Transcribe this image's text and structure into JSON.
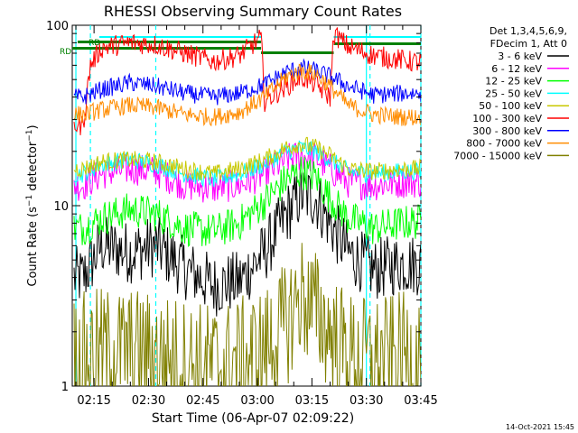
{
  "chart_data": {
    "type": "line",
    "title": "RHESSI Observing Summary Count Rates",
    "xlabel": "Start Time (06-Apr-07 02:09:22)",
    "ylabel": "Count Rate (s⁻¹ detector⁻¹)",
    "ylabel_parts": {
      "main": "Count Rate (s",
      "sup1": "−1",
      "mid": " detector",
      "sup2": "−1",
      "end": ")"
    },
    "yscale": "log",
    "ylim": [
      1,
      100
    ],
    "xlim_minutes_after_0209": [
      0,
      96
    ],
    "ytick_labels": [
      "1",
      "10",
      "100"
    ],
    "xtick_labels": [
      "02:15",
      "02:30",
      "02:45",
      "03:00",
      "03:15",
      "03:30",
      "03:45"
    ],
    "legend_header": [
      "Det 1,3,4,5,6,9,",
      "FDecim 1, Att 0"
    ],
    "flag_labels": [
      "RD",
      "RD"
    ],
    "footer_date": "14-Oct-2021 15:45",
    "series": [
      {
        "name": "3 - 6 keV",
        "color": "#000000",
        "x": [
          "02:12",
          "02:17",
          "02:25",
          "02:32",
          "02:40",
          "02:48",
          "02:55",
          "03:02",
          "03:08",
          "03:12",
          "03:16",
          "03:20",
          "03:25",
          "03:32",
          "03:40",
          "03:45"
        ],
        "y": [
          4.0,
          6.0,
          5.5,
          6.0,
          4.5,
          3.6,
          3.8,
          5.5,
          9.0,
          11.5,
          11.0,
          8.0,
          5.5,
          4.4,
          4.8,
          4.7
        ]
      },
      {
        "name": "6 - 12 keV",
        "color": "#ff00ff",
        "x": [
          "02:12",
          "02:17",
          "02:25",
          "02:32",
          "02:40",
          "02:48",
          "02:55",
          "03:02",
          "03:08",
          "03:12",
          "03:16",
          "03:20",
          "03:25",
          "03:32",
          "03:40",
          "03:45"
        ],
        "y": [
          13,
          15,
          16,
          15.5,
          13,
          12.5,
          13,
          15,
          18,
          19,
          18.5,
          16,
          13.5,
          13,
          13.5,
          13.5
        ]
      },
      {
        "name": "12 - 25 keV",
        "color": "#00ff00",
        "x": [
          "02:12",
          "02:17",
          "02:25",
          "02:32",
          "02:40",
          "02:48",
          "02:55",
          "03:02",
          "03:08",
          "03:12",
          "03:16",
          "03:20",
          "03:25",
          "03:32",
          "03:40",
          "03:45"
        ],
        "y": [
          7.5,
          8.5,
          9.5,
          9.0,
          7.5,
          7.2,
          8.0,
          10.5,
          14,
          15.5,
          14.5,
          11,
          8.5,
          7.5,
          8.0,
          8.2
        ]
      },
      {
        "name": "25 - 50 keV",
        "color": "#00ffff",
        "x": [
          "02:12",
          "02:17",
          "02:25",
          "02:32",
          "02:40",
          "02:48",
          "02:55",
          "03:02",
          "03:08",
          "03:12",
          "03:16",
          "03:20",
          "03:25",
          "03:32",
          "03:40",
          "03:45"
        ],
        "y": [
          15,
          17,
          18,
          17,
          15,
          14,
          15,
          17,
          20,
          21,
          20,
          18,
          15.5,
          15,
          15.5,
          15.5
        ]
      },
      {
        "name": "50 - 100 keV",
        "color": "#c8c800",
        "x": [
          "02:12",
          "02:17",
          "02:25",
          "02:32",
          "02:40",
          "02:48",
          "02:55",
          "03:02",
          "03:08",
          "03:12",
          "03:16",
          "03:20",
          "03:25",
          "03:32",
          "03:40",
          "03:45"
        ],
        "y": [
          16,
          17.5,
          18,
          17.5,
          16,
          15,
          16,
          18,
          21,
          22,
          21,
          19,
          16,
          15.5,
          16,
          16
        ]
      },
      {
        "name": "100 - 300 keV",
        "color": "#ff0000",
        "x": [
          "02:12",
          "02:14",
          "02:17",
          "02:25",
          "02:32",
          "02:40",
          "02:48",
          "02:55",
          "03:01",
          "03:02",
          "03:08",
          "03:12",
          "03:16",
          "03:20",
          "03:21",
          "03:25",
          "03:32",
          "03:40",
          "03:45"
        ],
        "y": [
          28,
          60,
          75,
          80,
          78,
          70,
          63,
          68,
          85,
          38,
          46,
          52,
          47,
          40,
          90,
          76,
          68,
          64,
          62
        ]
      },
      {
        "name": "300 - 800 keV",
        "color": "#0000ff",
        "x": [
          "02:12",
          "02:17",
          "02:25",
          "02:32",
          "02:40",
          "02:48",
          "02:55",
          "03:02",
          "03:08",
          "03:12",
          "03:16",
          "03:20",
          "03:25",
          "03:32",
          "03:40",
          "03:45"
        ],
        "y": [
          40,
          44,
          48,
          46,
          42,
          40,
          42,
          47,
          55,
          58,
          56,
          52,
          46,
          41,
          42,
          42
        ]
      },
      {
        "name": "800 - 7000 keV",
        "color": "#ff8c00",
        "x": [
          "02:12",
          "02:17",
          "02:25",
          "02:32",
          "02:40",
          "02:48",
          "02:55",
          "03:02",
          "03:08",
          "03:12",
          "03:16",
          "03:20",
          "03:25",
          "03:32",
          "03:40",
          "03:45"
        ],
        "y": [
          32,
          34,
          36,
          35,
          32,
          31,
          33,
          40,
          52,
          56,
          54,
          46,
          36,
          32,
          31,
          31
        ]
      },
      {
        "name": "7000 - 15000 keV",
        "color": "#808000",
        "x": [
          "02:12",
          "02:17",
          "02:25",
          "02:32",
          "02:40",
          "02:48",
          "02:55",
          "03:02",
          "03:08",
          "03:12",
          "03:16",
          "03:20",
          "03:25",
          "03:32",
          "03:40",
          "03:45"
        ],
        "y": [
          1.5,
          1.6,
          1.6,
          1.5,
          1.4,
          1.3,
          1.4,
          1.6,
          2.2,
          3.2,
          2.6,
          2.0,
          1.5,
          1.4,
          1.5,
          1.5
        ]
      }
    ]
  }
}
